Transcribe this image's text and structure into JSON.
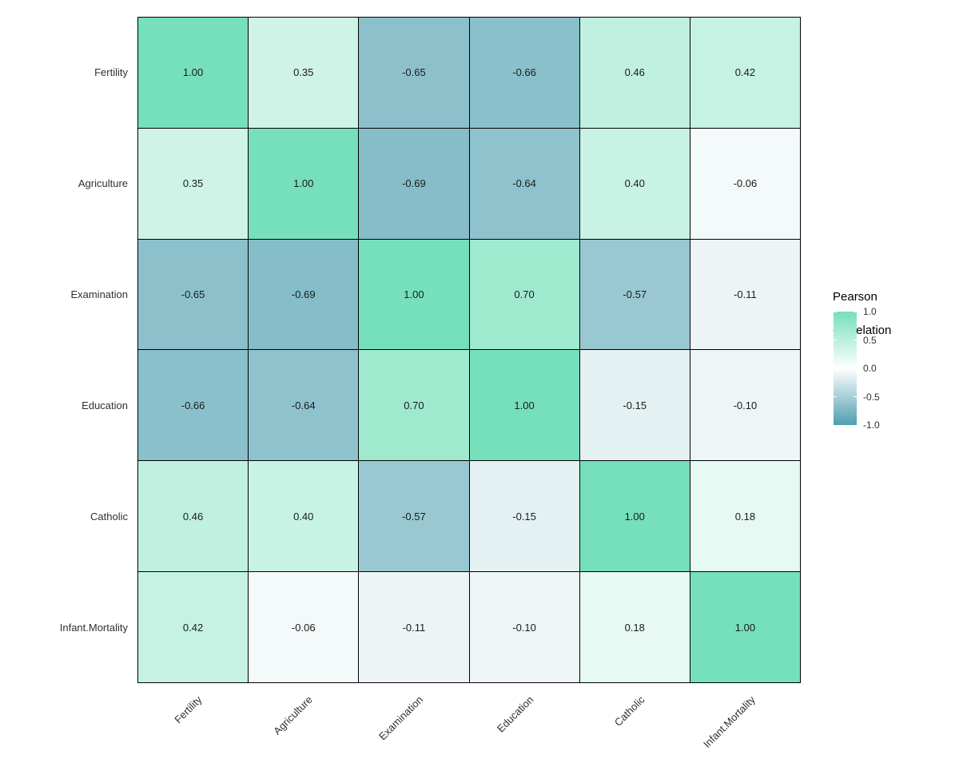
{
  "chart_data": {
    "type": "heatmap",
    "title": "",
    "variables": [
      "Fertility",
      "Agriculture",
      "Examination",
      "Education",
      "Catholic",
      "Infant.Mortality"
    ],
    "matrix": [
      [
        1.0,
        0.35,
        -0.65,
        -0.66,
        0.46,
        0.42
      ],
      [
        0.35,
        1.0,
        -0.69,
        -0.64,
        0.4,
        -0.06
      ],
      [
        -0.65,
        -0.69,
        1.0,
        0.7,
        -0.57,
        -0.11
      ],
      [
        -0.66,
        -0.64,
        0.7,
        1.0,
        -0.15,
        -0.1
      ],
      [
        0.46,
        0.4,
        -0.57,
        -0.15,
        1.0,
        0.18
      ],
      [
        0.42,
        -0.06,
        -0.11,
        -0.1,
        0.18,
        1.0
      ]
    ],
    "value_decimals": 2,
    "xlabel": "",
    "ylabel": "",
    "grid": false,
    "legend": {
      "position": "right",
      "title_lines": [
        "Pearson",
        "Correlation"
      ],
      "tick_labels": [
        "1.0",
        "0.5",
        "0.0",
        "-0.5",
        "-1.0"
      ],
      "tick_values": [
        1.0,
        0.5,
        0.0,
        -0.5,
        -1.0
      ],
      "range": [
        -1.0,
        1.0
      ]
    },
    "colors": {
      "high": "#76DFBB",
      "mid": "#FFFFFF",
      "low": "#4E9FB0",
      "cell_border": "#000000",
      "value_text": "#1A1A1A",
      "axis_text": "#303030"
    }
  }
}
